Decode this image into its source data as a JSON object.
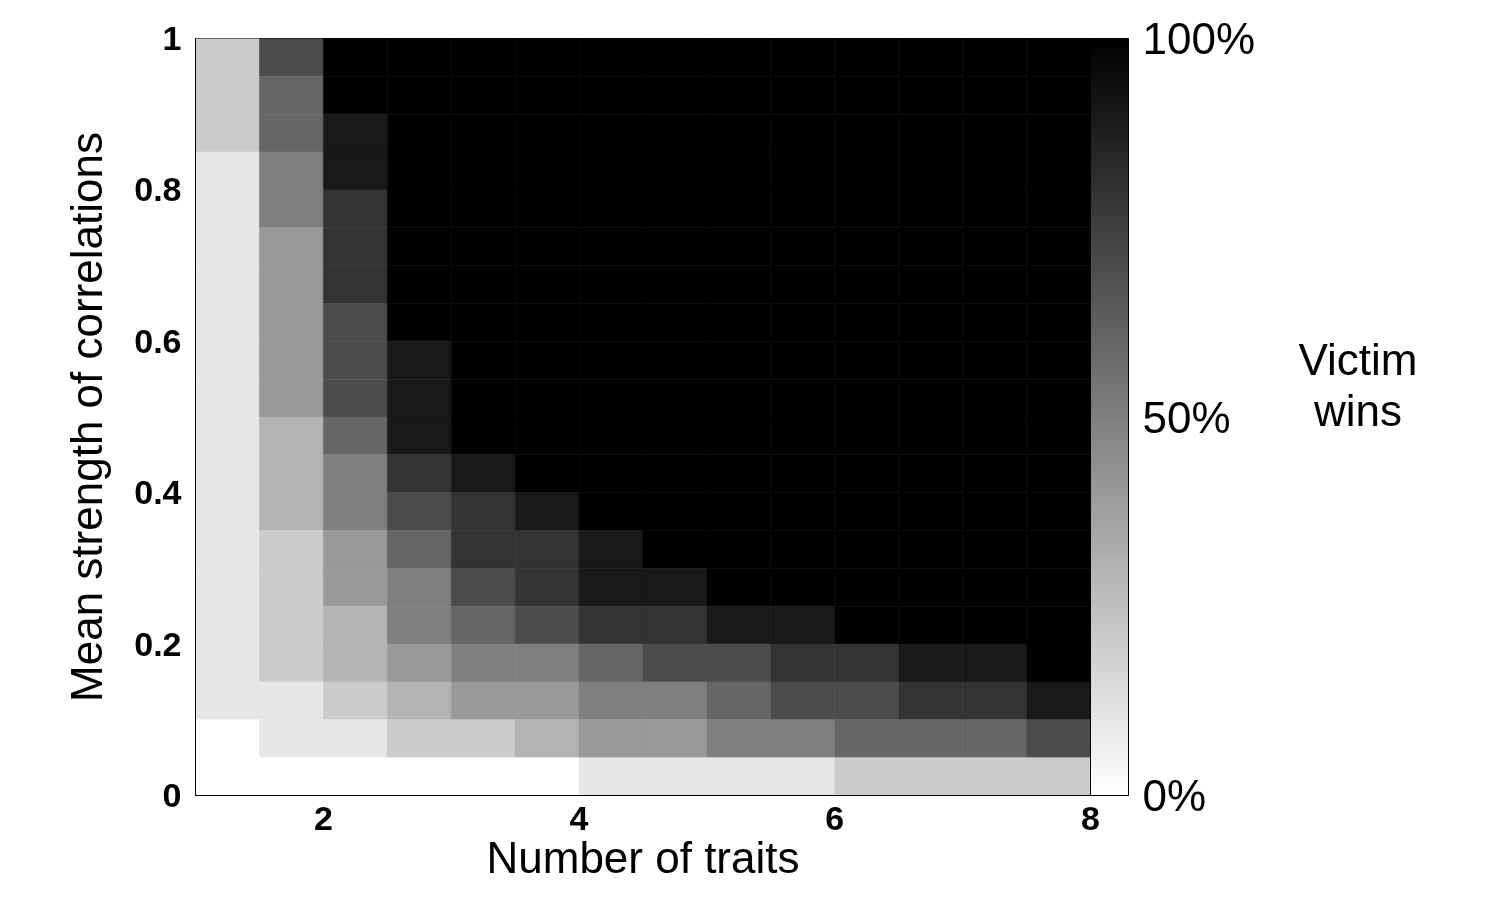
{
  "chart_data": {
    "type": "heatmap",
    "xlabel": "Number of traits",
    "ylabel": "Mean strength of correlations",
    "clabel": "Victim wins",
    "x": [
      1.25,
      1.75,
      2.25,
      2.75,
      3.25,
      3.75,
      4.25,
      4.75,
      5.25,
      5.75,
      6.25,
      6.75,
      7.25,
      7.75
    ],
    "y": [
      0.975,
      0.925,
      0.875,
      0.825,
      0.775,
      0.725,
      0.675,
      0.625,
      0.575,
      0.525,
      0.475,
      0.425,
      0.375,
      0.325,
      0.275,
      0.225,
      0.175,
      0.125,
      0.075,
      0.025
    ],
    "cells": [
      [
        20,
        70,
        100,
        100,
        100,
        100,
        100,
        100,
        100,
        100,
        100,
        100,
        100,
        100
      ],
      [
        20,
        60,
        100,
        100,
        100,
        100,
        100,
        100,
        100,
        100,
        100,
        100,
        100,
        100
      ],
      [
        20,
        60,
        90,
        100,
        100,
        100,
        100,
        100,
        100,
        100,
        100,
        100,
        100,
        100
      ],
      [
        10,
        50,
        90,
        100,
        100,
        100,
        100,
        100,
        100,
        100,
        100,
        100,
        100,
        100
      ],
      [
        10,
        50,
        80,
        100,
        100,
        100,
        100,
        100,
        100,
        100,
        100,
        100,
        100,
        100
      ],
      [
        10,
        40,
        80,
        100,
        100,
        100,
        100,
        100,
        100,
        100,
        100,
        100,
        100,
        100
      ],
      [
        10,
        40,
        80,
        100,
        100,
        100,
        100,
        100,
        100,
        100,
        100,
        100,
        100,
        100
      ],
      [
        10,
        40,
        70,
        100,
        100,
        100,
        100,
        100,
        100,
        100,
        100,
        100,
        100,
        100
      ],
      [
        10,
        40,
        70,
        90,
        100,
        100,
        100,
        100,
        100,
        100,
        100,
        100,
        100,
        100
      ],
      [
        10,
        40,
        70,
        90,
        100,
        100,
        100,
        100,
        100,
        100,
        100,
        100,
        100,
        100
      ],
      [
        10,
        30,
        60,
        90,
        100,
        100,
        100,
        100,
        100,
        100,
        100,
        100,
        100,
        100
      ],
      [
        10,
        30,
        50,
        80,
        90,
        100,
        100,
        100,
        100,
        100,
        100,
        100,
        100,
        100
      ],
      [
        10,
        30,
        50,
        70,
        80,
        90,
        100,
        100,
        100,
        100,
        100,
        100,
        100,
        100
      ],
      [
        10,
        20,
        40,
        60,
        80,
        80,
        90,
        100,
        100,
        100,
        100,
        100,
        100,
        100
      ],
      [
        10,
        20,
        40,
        50,
        70,
        80,
        90,
        90,
        100,
        100,
        100,
        100,
        100,
        100
      ],
      [
        10,
        20,
        30,
        50,
        60,
        70,
        80,
        80,
        90,
        90,
        100,
        100,
        100,
        100
      ],
      [
        10,
        20,
        30,
        40,
        50,
        50,
        60,
        70,
        70,
        80,
        80,
        90,
        90,
        100
      ],
      [
        10,
        10,
        20,
        30,
        40,
        40,
        50,
        50,
        60,
        70,
        70,
        80,
        80,
        90
      ],
      [
        0,
        10,
        10,
        20,
        20,
        30,
        40,
        40,
        50,
        50,
        60,
        60,
        60,
        70
      ],
      [
        0,
        0,
        0,
        0,
        0,
        0,
        10,
        10,
        10,
        10,
        20,
        20,
        20,
        20
      ]
    ],
    "xlim": [
      1,
      8
    ],
    "xticks": [
      2,
      4,
      6,
      8
    ],
    "ylim": [
      0,
      1
    ],
    "yticks": [
      0,
      0.2,
      0.4,
      0.6,
      0.8,
      1
    ],
    "clim": [
      0,
      100
    ],
    "cticks": [
      {
        "value": 0,
        "label": "0%"
      },
      {
        "value": 50,
        "label": "50%"
      },
      {
        "value": 100,
        "label": "100%"
      }
    ]
  }
}
